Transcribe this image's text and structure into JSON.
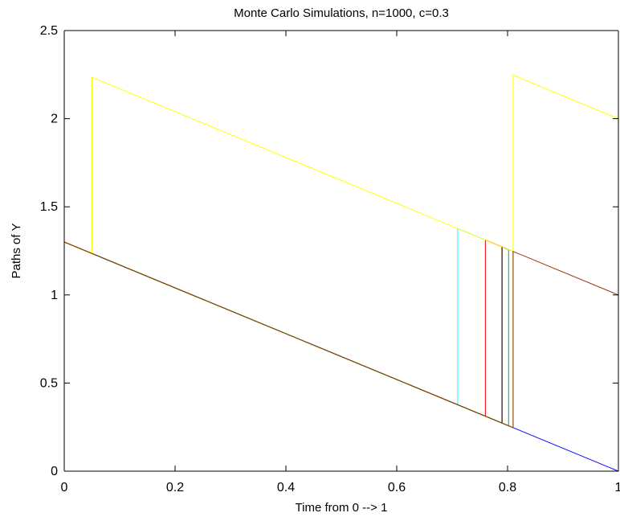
{
  "chart_data": {
    "type": "line",
    "title": "Monte Carlo Simulations, n=1000, c=0.3",
    "xlabel": "Time from 0 --> 1",
    "ylabel": "Paths of Y",
    "xlim": [
      0,
      1
    ],
    "ylim": [
      0,
      2.5
    ],
    "xticks": [
      0,
      0.2,
      0.4,
      0.6,
      0.8,
      1
    ],
    "xtick_labels": [
      "0",
      "0.2",
      "0.4",
      "0.6",
      "0.8",
      "1"
    ],
    "yticks": [
      0,
      0.5,
      1,
      1.5,
      2,
      2.5
    ],
    "ytick_labels": [
      "0",
      "0.5",
      "1",
      "1.5",
      "2",
      "2.5"
    ],
    "grid": false,
    "legend": "none",
    "series": [
      {
        "color": "#0000ff",
        "points": [
          [
            0,
            1.3
          ],
          [
            1,
            0.0
          ],
          [
            1,
            1.0
          ]
        ]
      },
      {
        "color": "#00ffff",
        "points": [
          [
            0,
            1.3
          ],
          [
            0.71,
            0.377
          ],
          [
            0.71,
            1.377
          ],
          [
            0.76,
            1.312
          ],
          [
            0.76,
            0.312
          ]
        ]
      },
      {
        "color": "#ff0000",
        "points": [
          [
            0,
            1.3
          ],
          [
            0.76,
            0.312
          ],
          [
            0.76,
            1.312
          ],
          [
            0.79,
            1.273
          ],
          [
            0.79,
            0.273
          ]
        ]
      },
      {
        "color": "#000000",
        "points": [
          [
            0,
            1.3
          ],
          [
            0.79,
            0.273
          ],
          [
            0.79,
            1.273
          ],
          [
            0.802,
            1.257
          ],
          [
            0.802,
            0.257
          ]
        ]
      },
      {
        "color": "#00ff00",
        "points": [
          [
            0,
            1.3
          ],
          [
            0.802,
            0.257
          ],
          [
            0.802,
            1.257
          ],
          [
            0.81,
            1.247
          ],
          [
            0.81,
            0.247
          ]
        ]
      },
      {
        "color": "#ffff00",
        "points": [
          [
            0,
            1.3
          ],
          [
            0.05,
            1.235
          ],
          [
            0.05,
            2.235
          ],
          [
            0.81,
            1.247
          ],
          [
            0.81,
            2.247
          ],
          [
            1,
            2.0
          ]
        ]
      },
      {
        "color": "#993300",
        "points": [
          [
            0,
            1.3
          ],
          [
            0.81,
            0.247
          ],
          [
            0.81,
            1.247
          ],
          [
            1,
            1.0
          ]
        ]
      }
    ]
  }
}
